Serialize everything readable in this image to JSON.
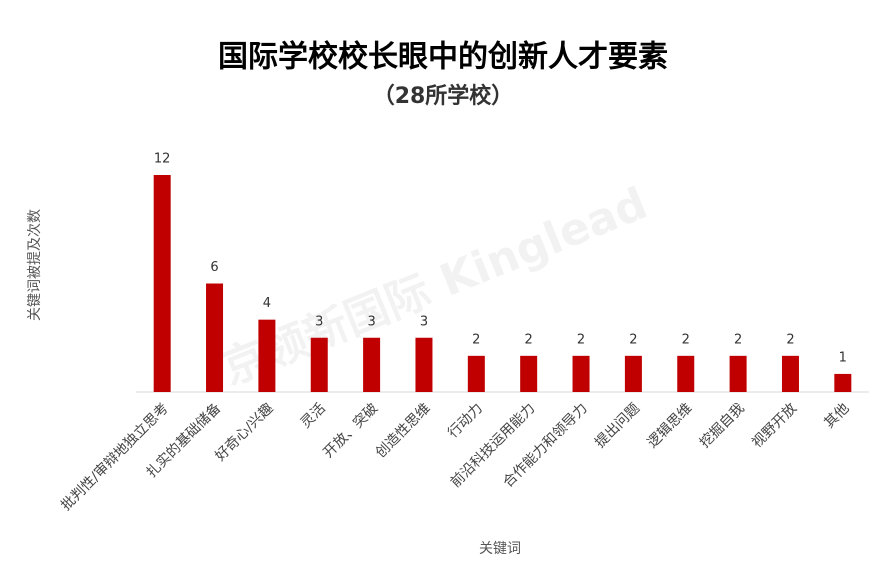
{
  "chart_data": {
    "type": "bar",
    "title": "国际学校校长眼中的创新人才要素",
    "subtitle": "（28所学校）",
    "y_label": "关键词被提及次数",
    "x_label": "关键词",
    "watermark": "京领新国际 Kinglead",
    "categories": [
      "批判性/审辩地独立思考",
      "扎实的基础储备",
      "好奇心/兴趣",
      "灵活",
      "开放、突破",
      "创造性思维",
      "行动力",
      "前沿科技运用能力",
      "合作能力和领导力",
      "提出问题",
      "逻辑思维",
      "挖掘自我",
      "视野开放",
      "其他"
    ],
    "values": [
      12,
      6,
      4,
      3,
      3,
      3,
      2,
      2,
      2,
      2,
      2,
      2,
      2,
      1
    ],
    "color": "#c00000",
    "ylim": [
      0,
      12
    ],
    "grid": false
  }
}
